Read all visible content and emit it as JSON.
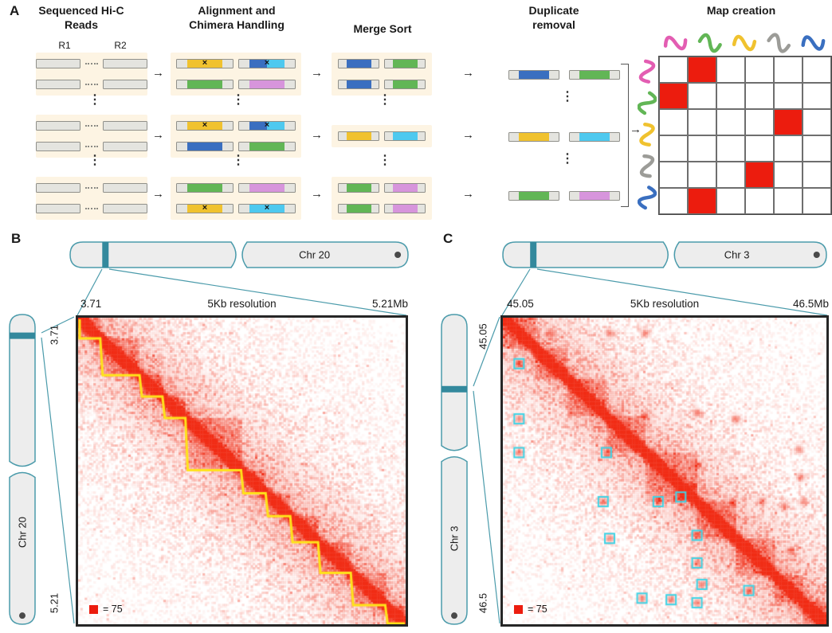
{
  "panelA": {
    "label": "A",
    "headers": [
      "Sequenced Hi-C Reads",
      "Alignment and Chimera Handling",
      "Merge Sort",
      "Duplicate removal",
      "Map creation"
    ],
    "read_labels": {
      "r1": "R1",
      "r2": "R2"
    },
    "arrow_glyph": "→",
    "x_mark": "×",
    "vdots_glyph": "⋮",
    "colors": {
      "yellow": "#f0c22f",
      "blue": "#3a6fc0",
      "cyan": "#4ec9ef",
      "green": "#62b656",
      "magenta": "#d795dc",
      "pink": "#e35db2",
      "gray_chrom": "#9c9c98",
      "red": "#ec1c0e",
      "read_gray": "#e4e4df"
    },
    "stage1_groups": [
      {
        "rows": 2
      },
      {
        "rows": 2
      },
      {
        "rows": 2
      }
    ],
    "stage2_groups": [
      {
        "rows": [
          [
            {
              "c": [
                "yellow"
              ],
              "x": true
            },
            {
              "c": [
                "blue",
                "cyan"
              ],
              "x": true
            }
          ],
          [
            {
              "c": [
                "green"
              ]
            },
            {
              "c": [
                "magenta"
              ]
            }
          ]
        ]
      },
      {
        "rows": [
          [
            {
              "c": [
                "yellow"
              ],
              "x": true
            },
            {
              "c": [
                "blue",
                "cyan"
              ],
              "x": true
            }
          ],
          [
            {
              "c": [
                "blue"
              ]
            },
            {
              "c": [
                "green"
              ]
            }
          ]
        ]
      },
      {
        "rows": [
          [
            {
              "c": [
                "green"
              ]
            },
            {
              "c": [
                "magenta"
              ]
            }
          ],
          [
            {
              "c": [
                "yellow"
              ],
              "x": true
            },
            {
              "c": [
                "cyan"
              ],
              "x": true
            }
          ]
        ]
      }
    ],
    "stage3_groups": [
      {
        "rows": [
          [
            {
              "c": [
                "blue"
              ]
            },
            {
              "c": [
                "green"
              ]
            }
          ],
          [
            {
              "c": [
                "blue"
              ]
            },
            {
              "c": [
                "green"
              ]
            }
          ]
        ]
      },
      {
        "rows": [
          [
            {
              "c": [
                "yellow"
              ]
            },
            {
              "c": [
                "cyan"
              ]
            }
          ]
        ]
      },
      {
        "rows": [
          [
            {
              "c": [
                "green"
              ]
            },
            {
              "c": [
                "magenta"
              ]
            }
          ],
          [
            {
              "c": [
                "green"
              ]
            },
            {
              "c": [
                "magenta"
              ]
            }
          ]
        ]
      }
    ],
    "stage4_rows": [
      [
        {
          "c": [
            "blue"
          ]
        },
        {
          "c": [
            "green"
          ]
        }
      ],
      [
        {
          "c": [
            "yellow"
          ]
        },
        {
          "c": [
            "cyan"
          ]
        }
      ],
      [
        {
          "c": [
            "green"
          ]
        },
        {
          "c": [
            "magenta"
          ]
        }
      ]
    ],
    "matrix": {
      "rows": 6,
      "cols": 6,
      "red_cells": [
        [
          0,
          1
        ],
        [
          1,
          0
        ],
        [
          2,
          4
        ],
        [
          4,
          3
        ],
        [
          5,
          1
        ]
      ],
      "top_chromosome_colors": [
        "pink",
        "green",
        "yellow",
        "gray_chrom",
        "blue"
      ],
      "left_chromosome_colors": [
        "pink",
        "green",
        "yellow",
        "gray_chrom",
        "blue"
      ]
    }
  },
  "panelB": {
    "label": "B",
    "chromosome": "Chr 20",
    "x_start": "3.71",
    "x_end": "5.21Mb",
    "y_start": "3.71",
    "y_end": "5.21",
    "resolution": "5Kb resolution",
    "legend": "= 75"
  },
  "panelC": {
    "label": "C",
    "chromosome": "Chr 3",
    "x_start": "45.05",
    "x_end": "46.5Mb",
    "y_start": "45.05",
    "y_end": "46.5",
    "resolution": "5Kb resolution",
    "legend": "= 75"
  },
  "chart_data": [
    {
      "id": "hic_map_chr20",
      "type": "heatmap",
      "title": "Hi-C contact map, Chr 20: 3.71-5.21 Mb",
      "chromosome": "Chr 20",
      "start_mb": 3.71,
      "end_mb": 5.21,
      "resolution": "5Kb",
      "color_scale_max": 75,
      "annotation": "contact domains outlined in yellow staircase along diagonal",
      "show_domains_outline": true,
      "mark_loops": false,
      "domain_boundaries_frac": [
        0,
        0.07,
        0.19,
        0.26,
        0.33,
        0.5,
        0.575,
        0.65,
        0.735,
        0.835,
        0.94,
        1
      ],
      "loops_frac": [],
      "ideogram": {
        "band_frac": 0.11,
        "centromere_frac": 0.5,
        "side_band_frac": 0.075,
        "side_centromere_frac": 0.5
      },
      "seed": 20
    },
    {
      "id": "hic_map_chr3",
      "type": "heatmap",
      "title": "Hi-C contact map, Chr 3: 45.05-46.5 Mb",
      "chromosome": "Chr 3",
      "start_mb": 45.05,
      "end_mb": 46.5,
      "resolution": "5Kb",
      "color_scale_max": 75,
      "annotation": "chromatin loops marked with cyan squares",
      "show_domains_outline": false,
      "mark_loops": true,
      "domain_boundaries_frac": [
        0,
        0.1,
        0.2,
        0.32,
        0.44,
        0.6,
        0.72,
        0.84,
        0.93,
        1
      ],
      "loops_frac": [
        [
          0.05,
          0.15
        ],
        [
          0.05,
          0.33
        ],
        [
          0.05,
          0.44
        ],
        [
          0.32,
          0.44
        ],
        [
          0.31,
          0.6
        ],
        [
          0.48,
          0.6
        ],
        [
          0.55,
          0.585
        ],
        [
          0.33,
          0.72
        ],
        [
          0.6,
          0.71
        ],
        [
          0.6,
          0.8
        ],
        [
          0.615,
          0.87
        ],
        [
          0.43,
          0.915
        ],
        [
          0.52,
          0.92
        ],
        [
          0.6,
          0.93
        ],
        [
          0.76,
          0.89
        ]
      ],
      "ideogram": {
        "band_frac": 0.1,
        "centromere_frac": 0.52,
        "side_band_frac": 0.245,
        "side_centromere_frac": 0.45
      },
      "seed": 33
    }
  ]
}
